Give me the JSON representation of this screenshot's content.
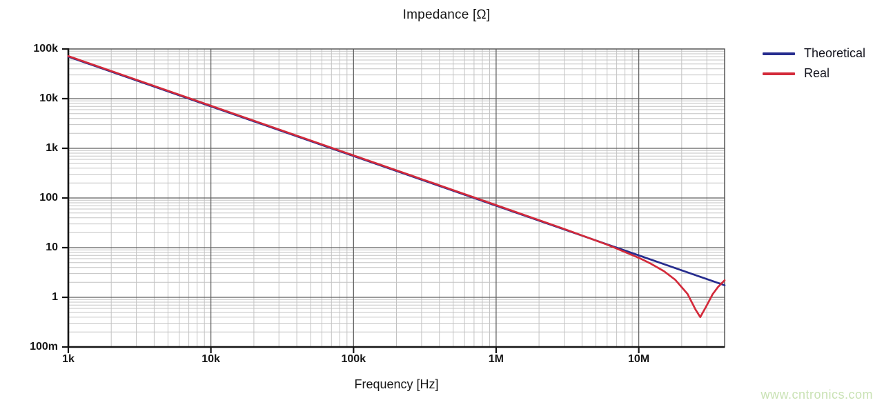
{
  "title": "Impedance [Ω]",
  "watermark": "www.cntronics.com",
  "axes_color": "#141414",
  "chart_data": {
    "type": "line",
    "title": "Impedance [Ω]",
    "xlabel": "Frequency [Hz]",
    "ylabel": "Impedance [Ω]",
    "x_scale": "log",
    "y_scale": "log",
    "xlim": [
      1000,
      40000000
    ],
    "ylim": [
      0.1,
      100000
    ],
    "grid": {
      "major": true,
      "minor": true,
      "major_color": "#5f5f5f",
      "minor_color": "#c3c3c3",
      "frame_color": "#4a4a4a"
    },
    "legend_position": "top-right",
    "xticks": [
      {
        "value": 1000,
        "label": "1k"
      },
      {
        "value": 10000,
        "label": "10k"
      },
      {
        "value": 100000,
        "label": "100k"
      },
      {
        "value": 1000000,
        "label": "1M"
      },
      {
        "value": 10000000,
        "label": "10M"
      }
    ],
    "yticks": [
      {
        "value": 100000,
        "label": "100k"
      },
      {
        "value": 10000,
        "label": "10k"
      },
      {
        "value": 1000,
        "label": "1k"
      },
      {
        "value": 100,
        "label": "100"
      },
      {
        "value": 10,
        "label": "10"
      },
      {
        "value": 1,
        "label": "1"
      },
      {
        "value": 0.1,
        "label": "100m"
      }
    ],
    "series": [
      {
        "name": "Theoretical",
        "color": "#262c8e",
        "description": "Ideal capacitor impedance, straight -20 dB/decade line",
        "points": [
          [
            1000,
            70000
          ],
          [
            10000,
            7000
          ],
          [
            100000,
            700
          ],
          [
            1000000,
            70
          ],
          [
            10000000,
            7
          ],
          [
            40000000,
            1.75
          ]
        ]
      },
      {
        "name": "Real",
        "color": "#d32a3a",
        "description": "Measured impedance: slightly above theoretical, series-resonance dip to ~0.4 Ω near 27 MHz, then inductive rise",
        "points": [
          [
            1000,
            72000
          ],
          [
            3000,
            24000
          ],
          [
            10000,
            7200
          ],
          [
            30000,
            2400
          ],
          [
            100000,
            720
          ],
          [
            300000,
            240
          ],
          [
            1000000,
            72
          ],
          [
            3000000,
            23.8
          ],
          [
            6000000,
            11.5
          ],
          [
            10000000,
            6.25
          ],
          [
            12000000,
            4.85
          ],
          [
            15000000,
            3.36
          ],
          [
            18000000,
            2.27
          ],
          [
            22000000,
            1.17
          ],
          [
            25000000,
            0.57
          ],
          [
            27000000,
            0.4
          ],
          [
            30000000,
            0.69
          ],
          [
            33000000,
            1.16
          ],
          [
            36000000,
            1.62
          ],
          [
            40000000,
            2.2
          ]
        ]
      }
    ]
  }
}
